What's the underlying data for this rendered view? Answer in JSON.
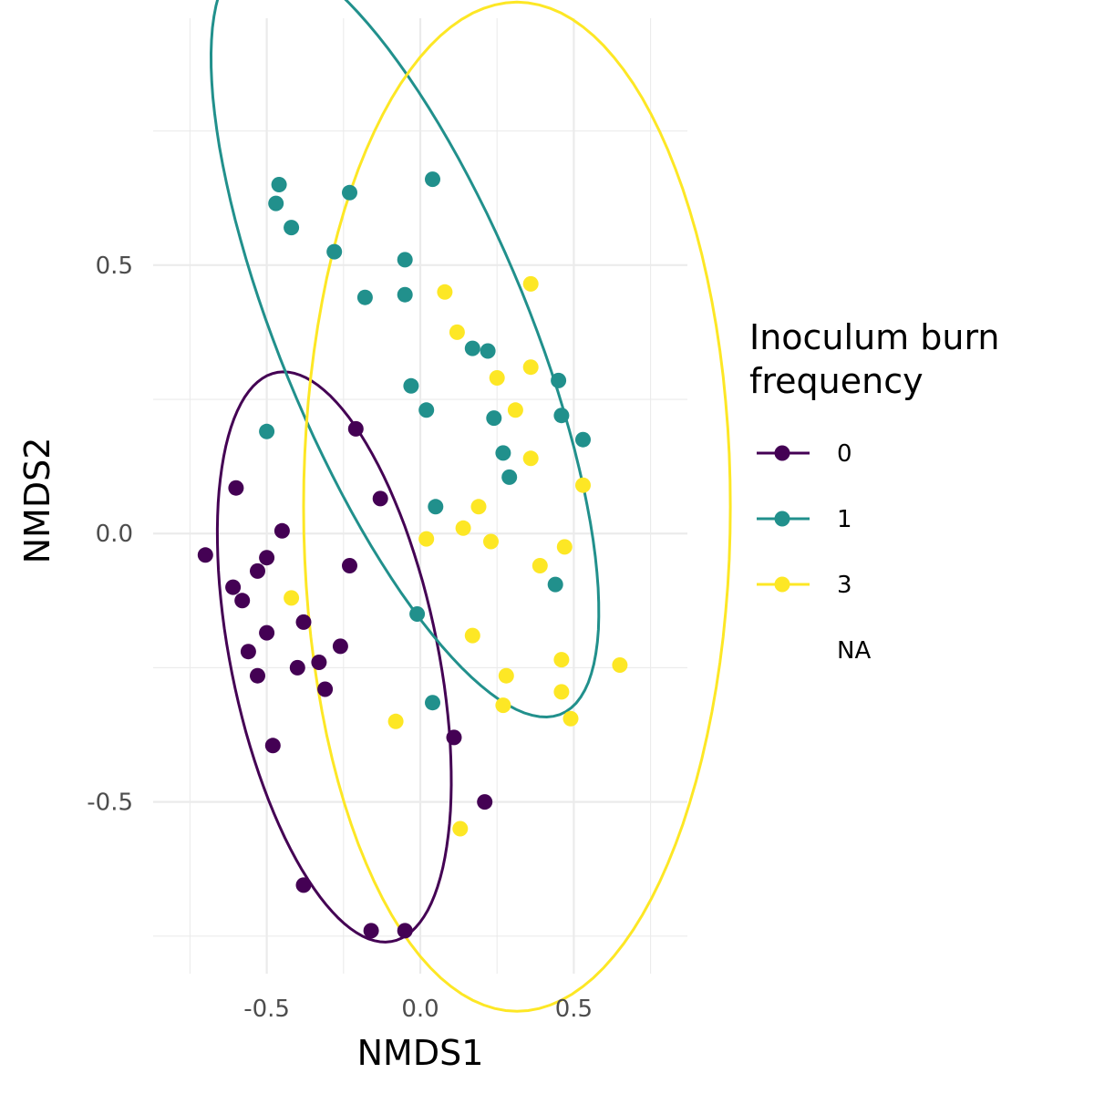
{
  "chart_data": {
    "type": "scatter",
    "title": "",
    "xlabel": "NMDS1",
    "ylabel": "NMDS2",
    "xlim": [
      -0.87,
      0.87
    ],
    "ylim": [
      -0.82,
      0.96
    ],
    "x_ticks": [
      -0.5,
      0.0,
      0.5
    ],
    "y_ticks": [
      -0.5,
      0.0,
      0.5
    ],
    "x_tick_labels": [
      "-0.5",
      "0.0",
      "0.5"
    ],
    "y_tick_labels": [
      "-0.5",
      "0.0",
      "0.5"
    ],
    "grid": true,
    "legend": {
      "position": "right",
      "title_lines": [
        "Inoculum burn",
        "frequency"
      ],
      "entries": [
        {
          "label": "0",
          "color": "#440154"
        },
        {
          "label": "1",
          "color": "#21908C"
        },
        {
          "label": "3",
          "color": "#FDE725"
        },
        {
          "label": "NA",
          "color": ""
        }
      ]
    },
    "series": [
      {
        "name": "0",
        "color": "#440154",
        "ellipse": {
          "center": [
            -0.28,
            -0.23
          ],
          "rx": 0.57,
          "ry": 0.32,
          "angle_deg": -64
        },
        "points": [
          [
            -0.7,
            -0.04
          ],
          [
            -0.6,
            0.085
          ],
          [
            -0.45,
            0.005
          ],
          [
            -0.21,
            0.195
          ],
          [
            -0.13,
            0.065
          ],
          [
            -0.61,
            -0.1
          ],
          [
            -0.58,
            -0.125
          ],
          [
            -0.53,
            -0.07
          ],
          [
            -0.5,
            -0.045
          ],
          [
            -0.23,
            -0.06
          ],
          [
            -0.56,
            -0.22
          ],
          [
            -0.5,
            -0.185
          ],
          [
            -0.38,
            -0.165
          ],
          [
            -0.53,
            -0.265
          ],
          [
            -0.4,
            -0.25
          ],
          [
            -0.33,
            -0.24
          ],
          [
            -0.26,
            -0.21
          ],
          [
            -0.31,
            -0.29
          ],
          [
            -0.48,
            -0.395
          ],
          [
            -0.38,
            -0.655
          ],
          [
            -0.16,
            -0.74
          ],
          [
            -0.05,
            -0.74
          ],
          [
            0.11,
            -0.38
          ],
          [
            0.21,
            -0.5
          ]
        ]
      },
      {
        "name": "1",
        "color": "#21908C",
        "ellipse": {
          "center": [
            -0.05,
            0.37
          ],
          "rx": 0.885,
          "ry": 0.35,
          "angle_deg": -49.7
        },
        "points": [
          [
            -0.46,
            0.65
          ],
          [
            -0.47,
            0.615
          ],
          [
            -0.42,
            0.57
          ],
          [
            -0.23,
            0.635
          ],
          [
            0.04,
            0.66
          ],
          [
            -0.28,
            0.525
          ],
          [
            -0.05,
            0.51
          ],
          [
            -0.18,
            0.44
          ],
          [
            -0.05,
            0.445
          ],
          [
            0.17,
            0.345
          ],
          [
            0.22,
            0.34
          ],
          [
            -0.03,
            0.275
          ],
          [
            0.02,
            0.23
          ],
          [
            0.45,
            0.285
          ],
          [
            0.24,
            0.215
          ],
          [
            0.46,
            0.22
          ],
          [
            0.53,
            0.175
          ],
          [
            0.27,
            0.15
          ],
          [
            0.29,
            0.105
          ],
          [
            -0.5,
            0.19
          ],
          [
            0.05,
            0.05
          ],
          [
            0.44,
            -0.095
          ],
          [
            -0.01,
            -0.15
          ],
          [
            0.04,
            -0.315
          ]
        ]
      },
      {
        "name": "3",
        "color": "#FDE725",
        "ellipse": {
          "center": [
            0.315,
            0.05
          ],
          "rx": 0.695,
          "ry": 0.94,
          "angle_deg": 0
        },
        "points": [
          [
            0.08,
            0.45
          ],
          [
            0.36,
            0.465
          ],
          [
            0.12,
            0.375
          ],
          [
            0.36,
            0.31
          ],
          [
            0.25,
            0.29
          ],
          [
            0.31,
            0.23
          ],
          [
            0.36,
            0.14
          ],
          [
            0.53,
            0.09
          ],
          [
            0.19,
            0.05
          ],
          [
            0.14,
            0.01
          ],
          [
            0.02,
            -0.01
          ],
          [
            0.23,
            -0.015
          ],
          [
            0.47,
            -0.025
          ],
          [
            0.39,
            -0.06
          ],
          [
            -0.42,
            -0.12
          ],
          [
            0.17,
            -0.19
          ],
          [
            0.46,
            -0.235
          ],
          [
            0.28,
            -0.265
          ],
          [
            0.65,
            -0.245
          ],
          [
            0.46,
            -0.295
          ],
          [
            0.27,
            -0.32
          ],
          [
            0.49,
            -0.345
          ],
          [
            -0.08,
            -0.35
          ],
          [
            0.13,
            -0.55
          ]
        ]
      }
    ]
  }
}
